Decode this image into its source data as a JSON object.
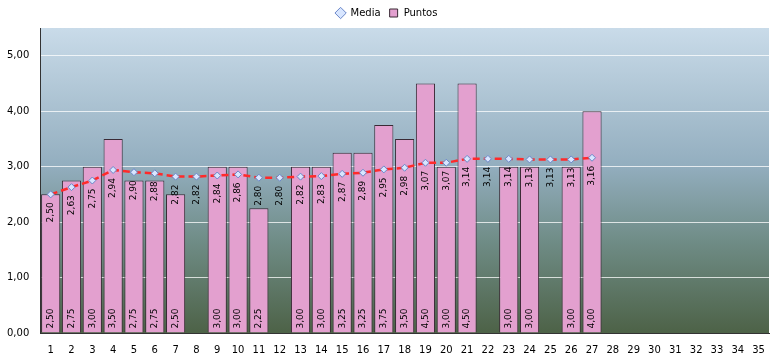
{
  "chart_data": {
    "type": "bar",
    "categories": [
      "1",
      "2",
      "3",
      "4",
      "5",
      "6",
      "7",
      "8",
      "9",
      "10",
      "11",
      "12",
      "13",
      "14",
      "15",
      "16",
      "17",
      "18",
      "19",
      "20",
      "21",
      "22",
      "23",
      "24",
      "25",
      "26",
      "27",
      "28",
      "29",
      "30",
      "31",
      "32",
      "33",
      "34",
      "35"
    ],
    "series": [
      {
        "name": "Puntos",
        "type": "bar",
        "color": "#e3a0cf",
        "values": [
          2.5,
          2.75,
          3,
          3.5,
          2.75,
          2.75,
          2.5,
          null,
          3,
          3,
          2.25,
          null,
          3,
          3,
          3.25,
          3.25,
          3.75,
          3.5,
          4.5,
          3,
          4.5,
          null,
          3,
          3,
          null,
          3,
          4,
          null,
          null,
          null,
          null,
          null,
          null,
          null,
          null
        ],
        "value_labels": [
          "2,50",
          "2,75",
          "3,00",
          "3,50",
          "2,75",
          "2,75",
          "2,50",
          null,
          "3,00",
          "3,00",
          "2,25",
          null,
          "3,00",
          "3,00",
          "3,25",
          "3,25",
          "3,75",
          "3,50",
          "4,50",
          "3,00",
          "4,50",
          null,
          "3,00",
          "3,00",
          null,
          "3,00",
          "4,00",
          null,
          null,
          null,
          null,
          null,
          null,
          null,
          null
        ]
      },
      {
        "name": "Media",
        "type": "line",
        "color": "#ff2a2a",
        "line_style": "dashed",
        "marker": "diamond",
        "values": [
          2.5,
          2.63,
          2.75,
          2.94,
          2.9,
          2.88,
          2.82,
          2.82,
          2.84,
          2.86,
          2.8,
          2.8,
          2.82,
          2.83,
          2.87,
          2.89,
          2.95,
          2.98,
          3.07,
          3.07,
          3.14,
          3.14,
          3.14,
          3.13,
          3.13,
          3.13,
          3.16,
          null,
          null,
          null,
          null,
          null,
          null,
          null,
          null
        ],
        "value_labels": [
          "2,50",
          "2,63",
          "2,75",
          "2,94",
          "2,90",
          "2,88",
          "2,82",
          "2,82",
          "2,84",
          "2,86",
          "2,80",
          "2,80",
          "2,82",
          "2,83",
          "2,87",
          "2,89",
          "2,95",
          "2,98",
          "3,07",
          "3,07",
          "3,14",
          "3,14",
          "3,14",
          "3,13",
          "3,13",
          "3,13",
          "3,16",
          null,
          null,
          null,
          null,
          null,
          null,
          null,
          null
        ]
      }
    ],
    "ylim": [
      0,
      5.5
    ],
    "yticks": [
      {
        "value": 0,
        "label": "0,00"
      },
      {
        "value": 1,
        "label": "1,00"
      },
      {
        "value": 2,
        "label": "2,00"
      },
      {
        "value": 3,
        "label": "3,00"
      },
      {
        "value": 4,
        "label": "4,00"
      },
      {
        "value": 5,
        "label": "5,00"
      }
    ],
    "grid": true,
    "legend": "top",
    "data_labels": true
  }
}
